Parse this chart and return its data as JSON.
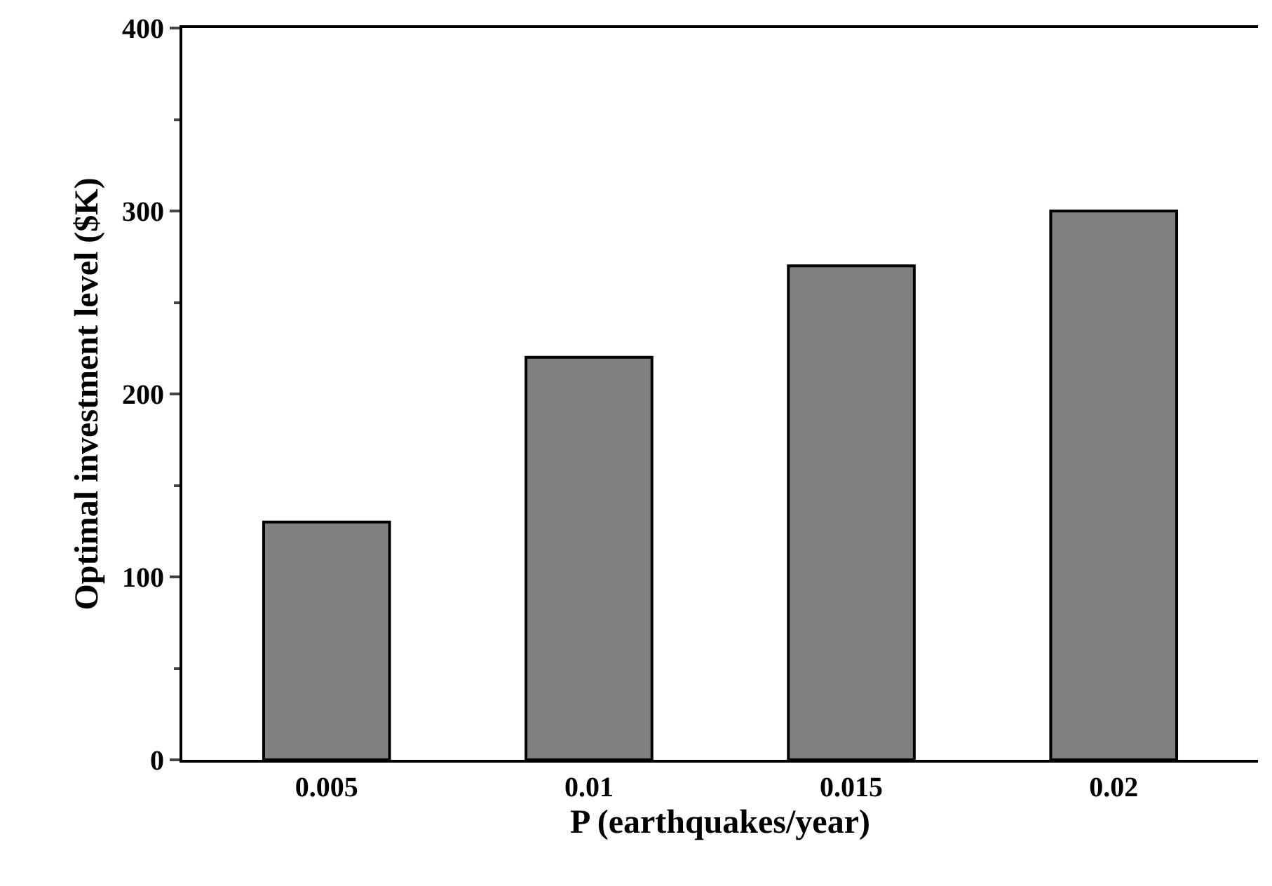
{
  "chart_data": {
    "type": "bar",
    "xlabel": "P (earthquakes/year)",
    "ylabel": "Optimal investment level ($K)",
    "categories": [
      "0.005",
      "0.01",
      "0.015",
      "0.02"
    ],
    "values": [
      130,
      220,
      270,
      300
    ],
    "color": "#808080",
    "ylim": [
      0,
      400
    ],
    "yticks": [
      0,
      100,
      200,
      300,
      400
    ]
  }
}
